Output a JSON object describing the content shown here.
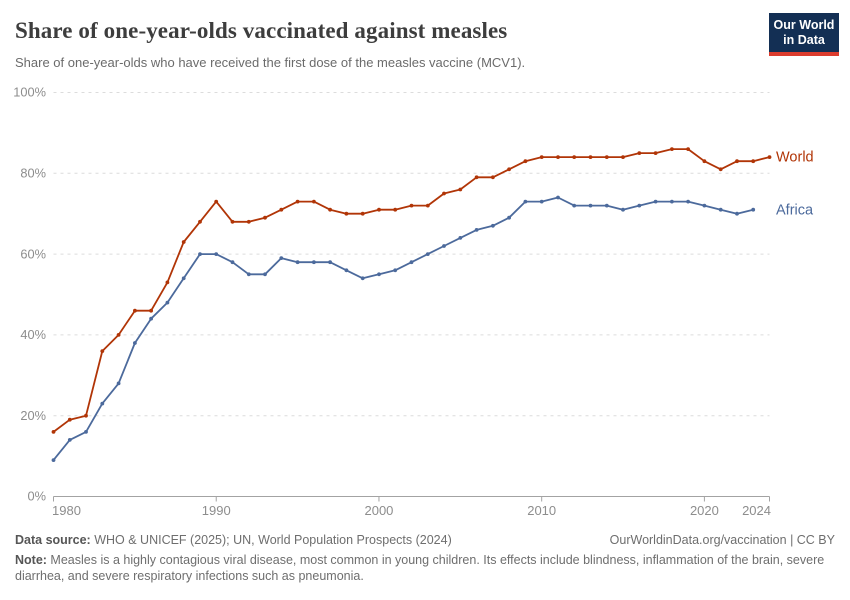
{
  "header": {
    "title": "Share of one-year-olds vaccinated against measles",
    "subtitle": "Share of one-year-olds who have received the first dose of the measles vaccine (MCV1).",
    "logo": {
      "line1": "Our World",
      "line2": "in Data"
    }
  },
  "chart_data": {
    "type": "line",
    "title": "Share of one-year-olds vaccinated against measles",
    "xlabel": "",
    "ylabel": "",
    "x": [
      1980,
      1981,
      1982,
      1983,
      1984,
      1985,
      1986,
      1987,
      1988,
      1989,
      1990,
      1991,
      1992,
      1993,
      1994,
      1995,
      1996,
      1997,
      1998,
      1999,
      2000,
      2001,
      2002,
      2003,
      2004,
      2005,
      2006,
      2007,
      2008,
      2009,
      2010,
      2011,
      2012,
      2013,
      2014,
      2015,
      2016,
      2017,
      2018,
      2019,
      2020,
      2021,
      2022,
      2023,
      2024
    ],
    "xlim": [
      1980,
      2024
    ],
    "ylim": [
      0,
      100
    ],
    "yticks": [
      0,
      20,
      40,
      60,
      80,
      100
    ],
    "ytick_labels": [
      "0%",
      "20%",
      "40%",
      "60%",
      "80%",
      "100%"
    ],
    "xticks": [
      1980,
      1990,
      2000,
      2010,
      2020,
      2024
    ],
    "grid": "horizontal-dashed",
    "legend_position": "labels-at-line-ends",
    "series": [
      {
        "name": "World",
        "color": "#b13507",
        "end_year": 2024,
        "values": [
          16,
          19,
          20,
          36,
          40,
          46,
          46,
          53,
          63,
          68,
          73,
          68,
          68,
          69,
          71,
          73,
          73,
          71,
          70,
          70,
          71,
          71,
          72,
          72,
          75,
          76,
          79,
          79,
          81,
          83,
          84,
          84,
          84,
          84,
          84,
          84,
          85,
          85,
          86,
          86,
          83,
          81,
          83,
          83,
          84
        ]
      },
      {
        "name": "Africa",
        "color": "#4c6a9c",
        "end_year": 2023,
        "values": [
          9,
          14,
          16,
          23,
          28,
          38,
          44,
          48,
          54,
          60,
          60,
          58,
          55,
          55,
          59,
          58,
          58,
          58,
          56,
          54,
          55,
          56,
          58,
          60,
          62,
          64,
          66,
          67,
          69,
          73,
          73,
          74,
          72,
          72,
          72,
          71,
          72,
          73,
          73,
          73,
          72,
          71,
          70,
          71
        ]
      }
    ]
  },
  "footer": {
    "source_label": "Data source:",
    "source_text": " WHO & UNICEF (2025); UN, World Population Prospects (2024)",
    "link_text": "OurWorldinData.org/vaccination | CC BY",
    "note_label": "Note:",
    "note_text": " Measles is a highly contagious viral disease, most common in young children. Its effects include blindness, inflammation of the brain, severe diarrhea, and severe respiratory infections such as pneumonia."
  },
  "colors": {
    "world_line": "#b13507",
    "africa_line": "#4c6a9c",
    "logo_background": "#132f54",
    "logo_stripe": "#dc3c2e",
    "gridline": "#dcdcdc",
    "axis": "#a3a3a3",
    "axis_text": "#8d8d8d",
    "title_text": "#3d3d3d",
    "subtitle_text": "#6b6b6b"
  }
}
